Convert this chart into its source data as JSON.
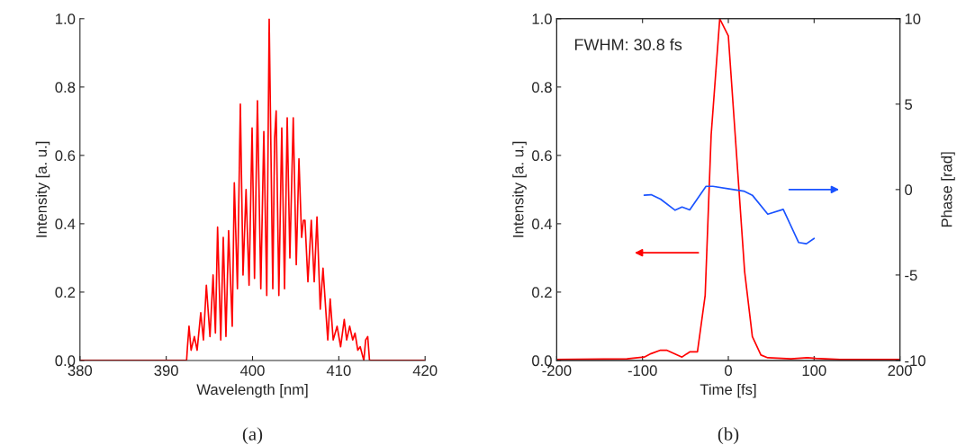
{
  "chart_data": [
    {
      "type": "line",
      "title": "(a)",
      "xlabel": "Wavelength [nm]",
      "ylabel": "Intensity [a. u.]",
      "xlim": [
        380,
        420
      ],
      "xticks": [
        380,
        390,
        400,
        410,
        420
      ],
      "ylim": [
        0,
        1.0
      ],
      "yticks": [
        {
          "value": 0,
          "label": "0.0"
        },
        {
          "value": 0.2,
          "label": "0.2"
        },
        {
          "value": 0.4,
          "label": "0.4"
        },
        {
          "value": 0.6,
          "label": "0.6"
        },
        {
          "value": 0.8,
          "label": "0.8"
        },
        {
          "value": 1.0,
          "label": "1.0"
        }
      ],
      "series": [
        {
          "color": "#ff0000",
          "x": [
            380,
            392.36,
            392.46,
            392.64,
            392.88,
            393.26,
            393.58,
            394.0,
            394.31,
            394.65,
            395.07,
            395.43,
            395.7,
            395.95,
            396.32,
            396.61,
            396.92,
            397.23,
            397.65,
            397.89,
            398.25,
            398.59,
            398.9,
            399.25,
            399.6,
            399.95,
            400.23,
            400.57,
            400.96,
            401.31,
            401.65,
            401.93,
            402.35,
            402.56,
            402.74,
            403.05,
            403.39,
            403.71,
            404.02,
            404.33,
            404.72,
            405.07,
            405.38,
            405.69,
            405.9,
            406.08,
            406.42,
            406.81,
            407.15,
            407.47,
            407.85,
            408.17,
            408.72,
            409.0,
            409.35,
            409.8,
            410.21,
            410.63,
            410.91,
            411.26,
            411.61,
            411.88,
            412.2,
            412.48,
            412.9,
            413.11,
            413.35,
            413.56,
            420
          ],
          "values": [
            0,
            0,
            0.04,
            0.1,
            0.03,
            0.07,
            0.03,
            0.14,
            0.06,
            0.22,
            0.07,
            0.25,
            0.08,
            0.39,
            0.06,
            0.36,
            0.07,
            0.38,
            0.1,
            0.52,
            0.21,
            0.75,
            0.25,
            0.5,
            0.22,
            0.68,
            0.24,
            0.76,
            0.21,
            0.67,
            0.19,
            1.0,
            0.21,
            0.65,
            0.73,
            0.19,
            0.68,
            0.21,
            0.71,
            0.3,
            0.71,
            0.28,
            0.59,
            0.36,
            0.41,
            0.41,
            0.23,
            0.41,
            0.23,
            0.42,
            0.15,
            0.27,
            0.06,
            0.18,
            0.06,
            0.1,
            0.04,
            0.12,
            0.06,
            0.1,
            0.06,
            0.08,
            0.03,
            0.04,
            0.0,
            0.06,
            0.07,
            0,
            0
          ]
        }
      ]
    },
    {
      "type": "line",
      "title": "(b)",
      "xlabel": "Time [fs]",
      "ylabel": "Intensity [a. u.]",
      "y2label": "Phase [rad]",
      "xlim": [
        -200,
        200
      ],
      "xticks": [
        -200,
        -100,
        0,
        100,
        200
      ],
      "ylim": [
        0,
        1.0
      ],
      "yticks": [
        {
          "value": 0,
          "label": "0.0"
        },
        {
          "value": 0.2,
          "label": "0.2"
        },
        {
          "value": 0.4,
          "label": "0.4"
        },
        {
          "value": 0.6,
          "label": "0.6"
        },
        {
          "value": 0.8,
          "label": "0.8"
        },
        {
          "value": 1.0,
          "label": "1.0"
        }
      ],
      "y2lim": [
        -10,
        10
      ],
      "y2ticks": [
        -10,
        -5,
        0,
        5,
        10
      ],
      "annotations": [
        "FWHM: 30.8 fs"
      ],
      "series": [
        {
          "color": "#ff0000",
          "x": [
            -200,
            -118,
            -98,
            -90,
            -79,
            -72,
            -54,
            -45,
            -36,
            -27,
            -20,
            -10,
            0,
            8,
            19,
            28,
            38,
            46,
            73,
            92,
            102,
            130,
            200
          ],
          "values": [
            0.003,
            0.005,
            0.01,
            0.02,
            0.03,
            0.03,
            0.01,
            0.025,
            0.025,
            0.19,
            0.66,
            1.0,
            0.95,
            0.66,
            0.26,
            0.07,
            0.016,
            0.008,
            0.005,
            0.008,
            0.006,
            0.003,
            0.003
          ]
        },
        {
          "color": "#1a53ff",
          "axis": "y2",
          "x": [
            -98,
            -90,
            -79,
            -62,
            -54,
            -45,
            -26,
            -18,
            1,
            18,
            28,
            46,
            64,
            82,
            91,
            100
          ],
          "values": [
            -0.33,
            -0.3,
            -0.56,
            -1.21,
            -1.02,
            -1.19,
            0.19,
            0.19,
            0.04,
            -0.09,
            -0.33,
            -1.44,
            -1.16,
            -3.1,
            -3.17,
            -2.86
          ]
        }
      ]
    }
  ]
}
